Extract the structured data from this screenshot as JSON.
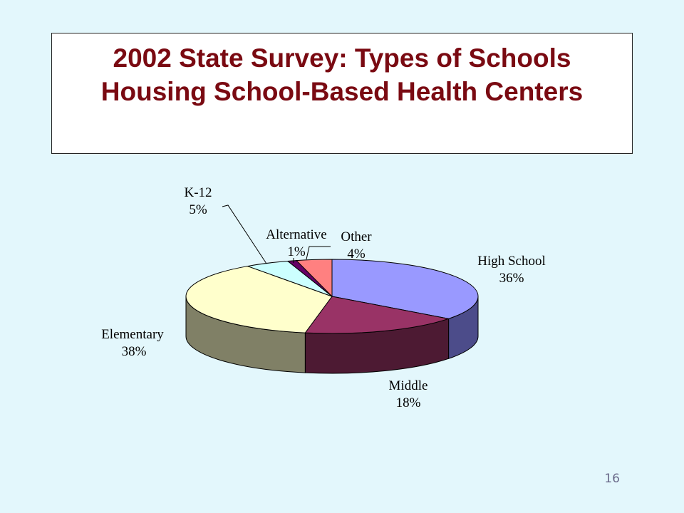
{
  "slide": {
    "title_line1": "2002 State Survey:  Types of Schools",
    "title_line2": "Housing School-Based Health Centers",
    "page_number": "16"
  },
  "chart_data": {
    "type": "pie",
    "title": "2002 State Survey:  Types of Schools Housing School-Based Health Centers",
    "style": "3d-exploded-none",
    "slices": [
      {
        "name": "High School",
        "value": 36,
        "pct_label": "36%",
        "top": "#9999ff",
        "side": "#4c4c8a"
      },
      {
        "name": "Middle",
        "value": 18,
        "pct_label": "18%",
        "top": "#993366",
        "side": "#4d1a33"
      },
      {
        "name": "Elementary",
        "value": 38,
        "pct_label": "38%",
        "top": "#ffffcc",
        "side": "#808066"
      },
      {
        "name": "K-12",
        "value": 5,
        "pct_label": "5%",
        "top": "#ccffff",
        "side": "#668080"
      },
      {
        "name": "Alternative",
        "value": 1,
        "pct_label": "1%",
        "top": "#660066",
        "side": "#330033"
      },
      {
        "name": "Other",
        "value": 4,
        "pct_label": "4%",
        "top": "#ff8080",
        "side": "#804040"
      }
    ]
  }
}
